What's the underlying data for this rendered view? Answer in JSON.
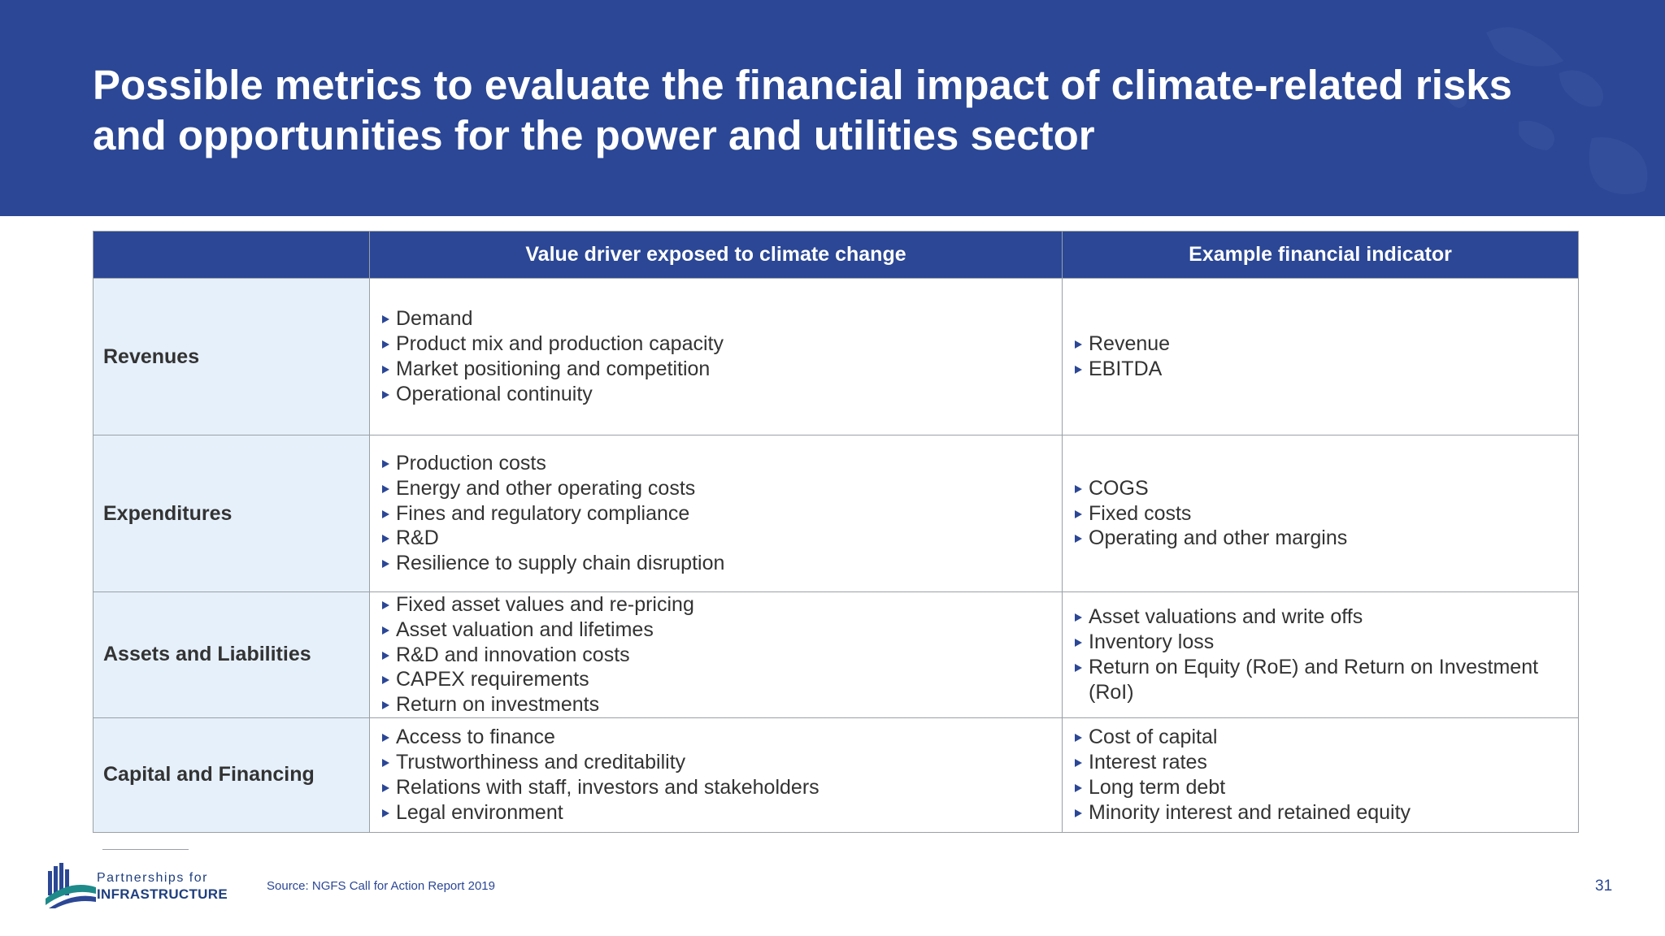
{
  "title": "Possible metrics to evaluate the financial impact of climate-related risks and opportunities for the power and utilities sector",
  "table": {
    "headers": [
      "",
      "Value driver exposed to climate change",
      "Example financial indicator"
    ],
    "rows": [
      {
        "category": "Revenues",
        "drivers": [
          "Demand",
          "Product mix and production capacity",
          "Market positioning and competition",
          "Operational continuity"
        ],
        "indicators": [
          "Revenue",
          "EBITDA"
        ]
      },
      {
        "category": "Expenditures",
        "drivers": [
          "Production costs",
          "Energy and other operating costs",
          "Fines and regulatory compliance",
          "R&D",
          "Resilience to supply chain disruption"
        ],
        "indicators": [
          "COGS",
          "Fixed costs",
          "Operating and other margins"
        ]
      },
      {
        "category": "Assets and Liabilities",
        "drivers": [
          "Fixed asset values and re-pricing",
          "Asset valuation and lifetimes",
          "R&D and innovation costs",
          "CAPEX requirements",
          "Return on investments"
        ],
        "indicators": [
          "Asset valuations and write offs",
          "Inventory loss",
          "Return on Equity (RoE) and Return on Investment (RoI)"
        ]
      },
      {
        "category": "Capital and Financing",
        "drivers": [
          "Access to finance",
          "Trustworthiness and creditability",
          "Relations with staff, investors and stakeholders",
          "Legal environment"
        ],
        "indicators": [
          "Cost of capital",
          "Interest rates",
          "Long term debt",
          "Minority interest and retained equity"
        ]
      }
    ]
  },
  "footer": {
    "logo_line1": "Partnerships for",
    "logo_line2": "INFRASTRUCTURE",
    "source": "Source: NGFS Call for Action Report 2019",
    "page_number": "31"
  },
  "colors": {
    "brand_blue": "#2b4795",
    "category_bg": "#e6f0fb",
    "logo_teal": "#1e8a8a"
  },
  "icons": [
    "bullet-triangle-icon",
    "partnerships-logo-icon",
    "world-map-watermark"
  ]
}
